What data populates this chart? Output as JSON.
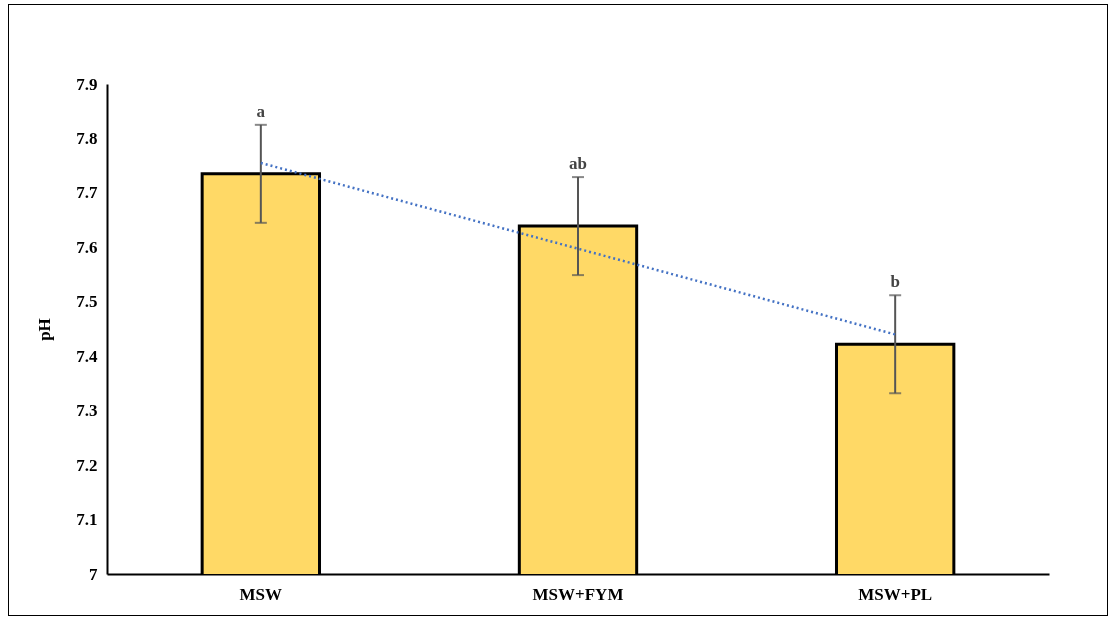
{
  "chart_data": {
    "type": "bar",
    "ylabel": "pH",
    "categories": [
      "MSW",
      "MSW+FYM",
      "MSW+PL"
    ],
    "series": [
      {
        "color": "#ffd966",
        "values": [
          7.735,
          7.639,
          7.422
        ],
        "errors": [
          0.09,
          0.09,
          0.09
        ]
      },
      {
        "type": "line",
        "x": [
          "MSW",
          "MSW+PL"
        ],
        "values": [
          7.755,
          7.44
        ],
        "color": "#4472c4",
        "line_style": "dotted"
      }
    ],
    "annotations": [
      "a",
      "ab",
      "b"
    ],
    "ylim": [
      7,
      7.9
    ],
    "yticks": [
      7,
      7.1,
      7.2,
      7.3,
      7.4,
      7.5,
      7.6,
      7.7,
      7.8,
      7.9
    ],
    "grid": false
  }
}
